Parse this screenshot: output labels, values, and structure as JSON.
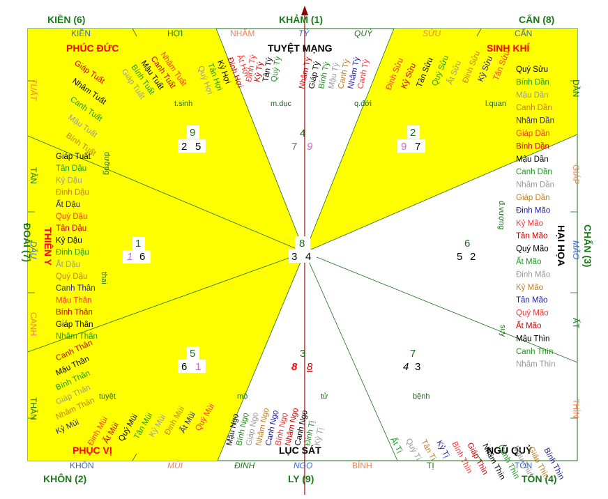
{
  "trigrams": {
    "kien": "KIỀN (6)",
    "kham": "KHẢM (1)",
    "can": "CẤN (8)",
    "doai": "ĐOÀI (7)",
    "chan": "CHẤN (3)",
    "khon": "KHÔN (2)",
    "ly": "LY (9)",
    "ton": "TỐN (4)"
  },
  "stars": {
    "phuc_duc": "PHÚC ĐỨC",
    "tuyet_mang": "TUYỆT MẠNG",
    "sinh_khi": "SINH KHÍ",
    "thien_y": "THIÊN Y",
    "hai_hoa": "HẠI HỌA",
    "phuc_vi": "PHỤC VỊ",
    "luc_sat": "LỤC SÁT",
    "ngu_quy": "NGŨ QUỶ"
  },
  "mountains": {
    "kien": "KIỀN",
    "hoi": "HỢI",
    "nham": "NHÂM",
    "ty": "TÝ",
    "quy": "QUÝ",
    "suu": "SỬU",
    "can": "CẤN",
    "dan": "DẦN",
    "giap": "GIÁP",
    "mao": "MÃO",
    "at": "ẤT",
    "thin": "THÌN",
    "ton": "TỐN",
    "ti": "TỊ",
    "binh": "BÍNH",
    "ngo": "NGỌ",
    "dinh": "ĐINH",
    "mui": "MÙI",
    "khon": "KHÔN",
    "than": "THÂN",
    "canh": "CANH",
    "dau": "DẬU",
    "tan": "TÂN",
    "tuat": "TUẤT"
  },
  "phases": {
    "t_sinh": "t.sinh",
    "m_duc": "m.dục",
    "q_doi": "q.đới",
    "l_quan": "l.quan",
    "d_vuong": "đ.vượng",
    "suy": "suy",
    "benh": "bệnh",
    "tu": "tử",
    "mo": "mộ",
    "tuyet": "tuyệt",
    "thai": "thai",
    "duong": "dưỡng"
  },
  "flying": {
    "nw": {
      "base": "9",
      "left": "2",
      "right": "5"
    },
    "n": {
      "base": "4",
      "left": "7",
      "right": "9"
    },
    "ne": {
      "base": "2",
      "left": "9",
      "right": "7"
    },
    "w": {
      "base": "1",
      "left": "1",
      "right": "6"
    },
    "c": {
      "base": "8",
      "left": "3",
      "right": "4"
    },
    "e": {
      "base": "6",
      "left": "5",
      "right": "2"
    },
    "sw": {
      "base": "5",
      "left": "6",
      "right": "1"
    },
    "s": {
      "base": "3",
      "left": "8",
      "right": "8"
    },
    "se": {
      "base": "7",
      "left": "4",
      "right": "3"
    }
  },
  "years": {
    "nw_top": [
      "Ất Hợi",
      "Đinh Hợi",
      "Kỷ Hợi",
      "Tân Hợi",
      "Quý Hợi"
    ],
    "nw_mid": [
      "Nhâm Tuất",
      "Canh Tuất",
      "Mậu Tuất",
      "Bính Tuất",
      "Giáp Tuất"
    ],
    "nw_left": [
      "Giáp Tuất",
      "Nhâm Tuất",
      "Canh Tuất",
      "Mậu Tuất",
      "Bính Tuất"
    ],
    "w": [
      "Giáp Tuất",
      "Tân Dậu",
      "Kỷ Dậu",
      "Đinh Dậu",
      "Ất Dậu",
      "Quý Dậu",
      "Tân Dậu",
      "Kỷ Dậu",
      "Đinh Dậu",
      "Ất Dậu",
      "Quý Dậu",
      "Canh Thân",
      "Mậu Thân",
      "Bính Thân",
      "Giáp Thân",
      "Nhâm Thân"
    ],
    "sw_left": [
      "Canh Thân",
      "Mậu Thân",
      "Bính Thân",
      "Giáp Thân",
      "Nhâm Thân",
      "Kỷ Mùi"
    ],
    "sw_mid": [
      "Đinh Mùi",
      "Ất Mùi",
      "Quý Mùi",
      "Tân Mùi",
      "Kỷ Mùi",
      "Đinh Mùi",
      "Ất Mùi",
      "Quý Mùi"
    ],
    "n_left": [
      "Đinh Tý",
      "Kỷ Tý",
      "Tân Tý",
      "Quý Tý"
    ],
    "n_right": [
      "Nhâm Tý",
      "Giáp Tý",
      "Bính Tý",
      "Mậu Tý",
      "Canh Tý",
      "Nhâm Tý",
      "Canh Tý"
    ],
    "ne_top": [
      "Đinh Sửu",
      "Kỷ Sửu",
      "Tân Sửu",
      "Quý Sửu",
      "Ất Sửu",
      "Đinh Sửu",
      "Kỷ Sửu",
      "Tân Sửu"
    ],
    "e": [
      "Quý Sửu",
      "Bính Dần",
      "Mậu Dần",
      "Canh Dần",
      "Nhâm Dần",
      "Giáp Dần",
      "Bính Dần",
      "Mậu Dần",
      "Canh Dần",
      "Nhâm Dần",
      "Giáp Dần",
      "Đinh Mão",
      "Kỷ Mão",
      "Tân Mão",
      "Quý Mão",
      "Ất Mão",
      "Đinh Mão",
      "Kỷ Mão",
      "Tân Mão",
      "Quý Mão",
      "Ất Mão",
      "Mậu Thìn",
      "Canh Thìn",
      "Nhâm Thìn"
    ],
    "se_bottom": [
      "Ất Tị",
      "Quý Tị",
      "Tân Tị",
      "Kỷ Tị",
      "Bính Thìn",
      "Giáp Thìn",
      "Nhâm Thìn",
      "Canh Thìn",
      "Mậu Thìn",
      "Giáp Thìn",
      "Bính Thìn"
    ],
    "s": [
      "Mậu Ngọ",
      "Bính Ngọ",
      "Giáp Ngọ",
      "Nhâm Ngọ",
      "Canh Ngọ",
      "Bính Ngọ",
      "Nhâm Ngọ",
      "Canh Ngọ",
      "Đinh Tị",
      "Kỷ Tị"
    ]
  },
  "colors": {
    "yellow": "#ffff00",
    "green": "#008000",
    "red": "#ff0000",
    "dark_red": "#cc0000",
    "orange": "#f08050",
    "blue": "#3366cc",
    "axis": "#990000",
    "pink": "#cc66cc"
  }
}
